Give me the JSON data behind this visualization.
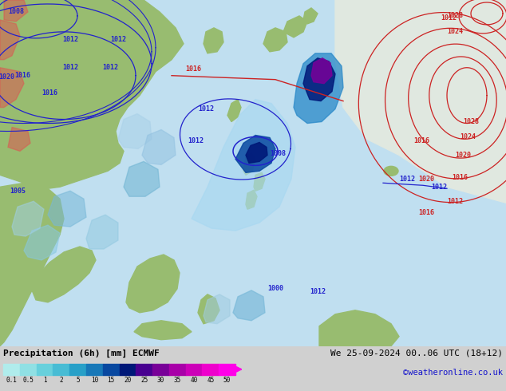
{
  "title": "Precipitation (6h) [mm] ECMWF",
  "date_label": "We 25-09-2024 00..06 UTC (18+12)",
  "website": "©weatheronline.co.uk",
  "colorbar_levels": [
    0.1,
    0.5,
    1,
    2,
    5,
    10,
    15,
    20,
    25,
    30,
    35,
    40,
    45,
    50
  ],
  "colorbar_colors": [
    "#b0ecec",
    "#90e0e4",
    "#68d0dc",
    "#48bcd4",
    "#28a0c8",
    "#1878b8",
    "#0848a0",
    "#001878",
    "#480090",
    "#780098",
    "#a800a8",
    "#cc00b8",
    "#ee00cc",
    "#ff00e8"
  ],
  "bg_color": "#d0d0d0",
  "ocean_color": "#c0dff0",
  "land_color_green": "#98bc70",
  "land_color_gray": "#b8b8b8",
  "blue_isobar": "#2222cc",
  "red_isobar": "#cc2222",
  "fig_width": 6.34,
  "fig_height": 4.9,
  "dpi": 100
}
